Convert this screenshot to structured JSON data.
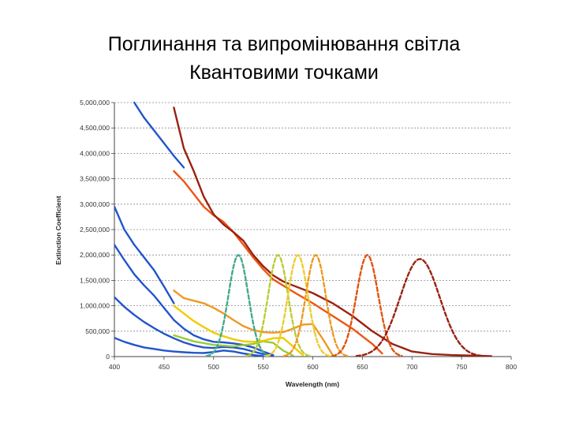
{
  "slide": {
    "title_line1": "Поглинання та випромінювання світла",
    "title_line2": "Квантовими точками"
  },
  "chart_data": {
    "type": "line",
    "xlabel": "Wavelength (nm)",
    "ylabel": "Extinction Coefficient",
    "xlim": [
      400,
      800
    ],
    "ylim": [
      0,
      5000000
    ],
    "xticks": [
      400,
      450,
      500,
      550,
      600,
      650,
      700,
      750,
      800
    ],
    "yticks": [
      0,
      500000,
      1000000,
      1500000,
      2000000,
      2500000,
      3000000,
      3500000,
      4000000,
      4500000,
      5000000
    ],
    "xtick_labels": [
      "400",
      "450",
      "500",
      "550",
      "600",
      "650",
      "700",
      "750",
      "800"
    ],
    "ytick_labels": [
      "0",
      "500,000",
      "1,000,000",
      "1,500,000",
      "2,000,000",
      "2,500,000",
      "3,000,000",
      "3,500,000",
      "4,000,000",
      "4,500,000",
      "5,000,000"
    ],
    "grid": "horizontal-dashed",
    "series": [
      {
        "kind": "absorption",
        "color": "#2255cc",
        "x": [
          400,
          410,
          420,
          430,
          440,
          450,
          460,
          470,
          480,
          490,
          500,
          510,
          520,
          530,
          540,
          550
        ],
        "y": [
          370000,
          290000,
          230000,
          180000,
          150000,
          120000,
          100000,
          85000,
          75000,
          70000,
          90000,
          120000,
          100000,
          60000,
          30000,
          10000
        ]
      },
      {
        "kind": "absorption",
        "color": "#2255cc",
        "x": [
          400,
          410,
          420,
          430,
          440,
          450,
          460,
          470,
          480,
          490,
          500,
          510,
          520,
          530,
          540,
          550,
          560
        ],
        "y": [
          1170000,
          980000,
          820000,
          680000,
          560000,
          450000,
          360000,
          280000,
          220000,
          180000,
          170000,
          190000,
          180000,
          150000,
          100000,
          50000,
          15000
        ]
      },
      {
        "kind": "absorption",
        "color": "#2255cc",
        "x": [
          400,
          410,
          420,
          430,
          440,
          450,
          460,
          470,
          480,
          490,
          500,
          510,
          520,
          530,
          540,
          550,
          560
        ],
        "y": [
          2200000,
          1900000,
          1620000,
          1400000,
          1200000,
          960000,
          720000,
          550000,
          420000,
          340000,
          290000,
          280000,
          260000,
          230000,
          180000,
          100000,
          30000
        ]
      },
      {
        "kind": "absorption",
        "color": "#2255cc",
        "x": [
          400,
          410,
          420,
          430,
          440,
          450,
          460
        ],
        "y": [
          2950000,
          2500000,
          2200000,
          1950000,
          1700000,
          1380000,
          1050000
        ]
      },
      {
        "kind": "absorption",
        "color": "#2255cc",
        "x": [
          420,
          430,
          440,
          450,
          460,
          470
        ],
        "y": [
          5000000,
          4700000,
          4450000,
          4200000,
          3950000,
          3720000
        ]
      },
      {
        "kind": "absorption",
        "color": "#99cc33",
        "x": [
          460,
          480,
          500,
          520,
          540,
          550,
          560,
          570,
          580
        ],
        "y": [
          420000,
          300000,
          230000,
          200000,
          250000,
          300000,
          270000,
          120000,
          20000
        ]
      },
      {
        "kind": "absorption",
        "color": "#eecc00",
        "x": [
          460,
          470,
          480,
          490,
          500,
          510,
          520,
          530,
          540,
          550,
          560,
          570,
          580,
          590
        ],
        "y": [
          1000000,
          850000,
          700000,
          580000,
          470000,
          400000,
          340000,
          300000,
          290000,
          310000,
          360000,
          370000,
          200000,
          30000
        ]
      },
      {
        "kind": "absorption",
        "color": "#ee9922",
        "x": [
          460,
          470,
          480,
          490,
          500,
          510,
          520,
          530,
          540,
          550,
          560,
          570,
          580,
          590,
          600,
          610,
          620
        ],
        "y": [
          1300000,
          1150000,
          1100000,
          1050000,
          960000,
          850000,
          720000,
          600000,
          520000,
          480000,
          470000,
          480000,
          550000,
          630000,
          640000,
          350000,
          30000
        ]
      },
      {
        "kind": "absorption",
        "color": "#ee5511",
        "x": [
          460,
          470,
          480,
          490,
          500,
          510,
          520,
          530,
          540,
          550,
          560,
          580,
          600,
          620,
          640,
          660,
          670
        ],
        "y": [
          3650000,
          3450000,
          3200000,
          2950000,
          2780000,
          2650000,
          2450000,
          2200000,
          1950000,
          1720000,
          1520000,
          1280000,
          1050000,
          800000,
          550000,
          250000,
          60000
        ]
      },
      {
        "kind": "absorption",
        "color": "#992211",
        "x": [
          460,
          465,
          470,
          480,
          490,
          500,
          510,
          520,
          530,
          540,
          550,
          560,
          570,
          580,
          600,
          620,
          640,
          660,
          680,
          700,
          720,
          740,
          760,
          780
        ],
        "y": [
          4900000,
          4500000,
          4100000,
          3650000,
          3150000,
          2800000,
          2600000,
          2450000,
          2280000,
          2000000,
          1780000,
          1600000,
          1480000,
          1400000,
          1250000,
          1050000,
          800000,
          500000,
          250000,
          100000,
          50000,
          30000,
          20000,
          10000
        ]
      },
      {
        "kind": "emission",
        "color": "#44aa88",
        "center": 525,
        "sigma": 10,
        "peak": 2000000
      },
      {
        "kind": "emission",
        "color": "#bbcc33",
        "center": 565,
        "sigma": 10,
        "peak": 2000000
      },
      {
        "kind": "emission",
        "color": "#eecc33",
        "center": 585,
        "sigma": 10,
        "peak": 2000000
      },
      {
        "kind": "emission",
        "color": "#ee9922",
        "center": 603,
        "sigma": 10,
        "peak": 2000000
      },
      {
        "kind": "emission",
        "color": "#dd5511",
        "center": 655,
        "sigma": 11,
        "peak": 2000000
      },
      {
        "kind": "emission",
        "color": "#992211",
        "center": 708,
        "sigma": 20,
        "peak": 1920000
      }
    ]
  }
}
